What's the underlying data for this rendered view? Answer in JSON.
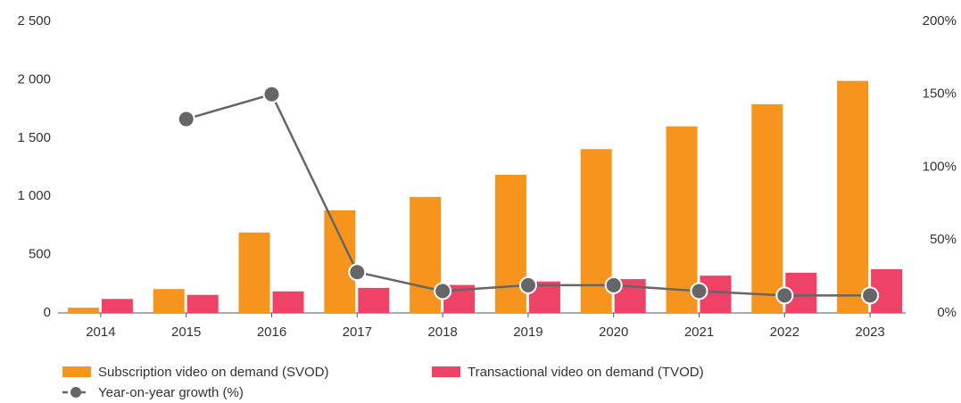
{
  "chart_data": {
    "type": "bar",
    "categories": [
      "2014",
      "2015",
      "2016",
      "2017",
      "2018",
      "2019",
      "2020",
      "2021",
      "2022",
      "2023"
    ],
    "series": [
      {
        "name": "Subscription video on demand (SVOD)",
        "color": "#f7941d",
        "values": [
          45,
          205,
          690,
          880,
          995,
          1185,
          1405,
          1600,
          1790,
          1990
        ]
      },
      {
        "name": "Transactional video on demand (TVOD)",
        "color": "#ee4266",
        "values": [
          120,
          155,
          185,
          215,
          240,
          270,
          290,
          320,
          345,
          375
        ]
      },
      {
        "name": "Year-on-year growth (%)",
        "color": "#666666",
        "type": "line",
        "axis": "y2",
        "values": [
          null,
          133,
          150,
          28,
          15,
          19,
          19,
          15,
          12,
          12
        ]
      }
    ],
    "ylim": [
      0,
      2500
    ],
    "yticks": [
      0,
      500,
      {
        "value": 1000,
        "label": "1 000"
      },
      {
        "value": 1500,
        "label": "1 500"
      },
      {
        "value": 2000,
        "label": "2 000"
      },
      {
        "value": 2500,
        "label": "2 500"
      }
    ],
    "y2lim": [
      0,
      200
    ],
    "y2ticks": [
      {
        "value": 0,
        "label": "0%"
      },
      {
        "value": 50,
        "label": "50%"
      },
      {
        "value": 100,
        "label": "100%"
      },
      {
        "value": 150,
        "label": "150%"
      },
      {
        "value": 200,
        "label": "200%"
      }
    ],
    "grid": false,
    "legend": "bottom"
  }
}
